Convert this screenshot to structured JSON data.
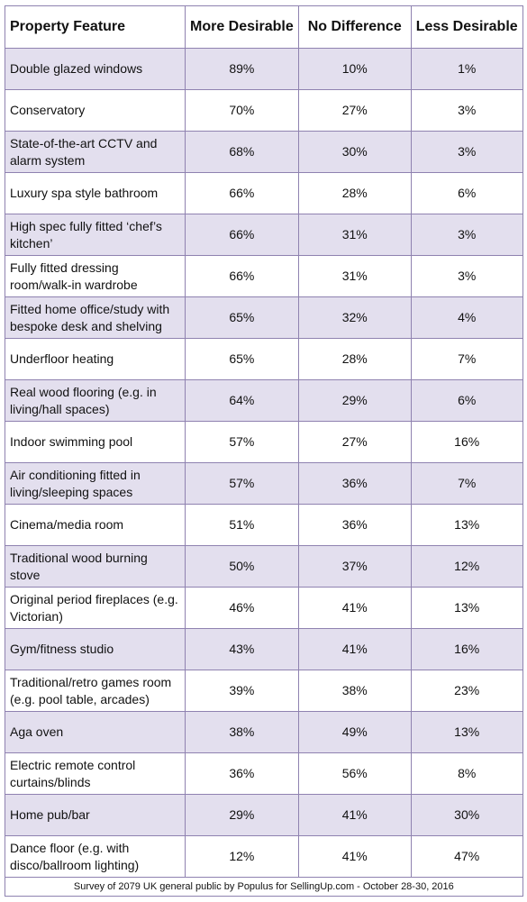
{
  "chart_data": {
    "type": "table",
    "columns": [
      "Property Feature",
      "More Desirable",
      "No Difference",
      "Less Desirable"
    ],
    "rows": [
      [
        "Double glazed windows",
        "89%",
        "10%",
        "1%"
      ],
      [
        "Conservatory",
        "70%",
        "27%",
        "3%"
      ],
      [
        "State-of-the-art CCTV and alarm system",
        "68%",
        "30%",
        "3%"
      ],
      [
        "Luxury spa style bathroom",
        "66%",
        "28%",
        "6%"
      ],
      [
        "High spec fully fitted ‘chef’s kitchen’",
        "66%",
        "31%",
        "3%"
      ],
      [
        "Fully fitted dressing room/walk-in wardrobe",
        "66%",
        "31%",
        "3%"
      ],
      [
        "Fitted home office/study with bespoke desk and shelving",
        "65%",
        "32%",
        "4%"
      ],
      [
        "Underfloor heating",
        "65%",
        "28%",
        "7%"
      ],
      [
        "Real wood flooring (e.g. in living/hall spaces)",
        "64%",
        "29%",
        "6%"
      ],
      [
        "Indoor swimming pool",
        "57%",
        "27%",
        "16%"
      ],
      [
        "Air conditioning fitted in living/sleeping spaces",
        "57%",
        "36%",
        "7%"
      ],
      [
        "Cinema/media room",
        "51%",
        "36%",
        "13%"
      ],
      [
        "Traditional wood burning stove",
        "50%",
        "37%",
        "12%"
      ],
      [
        "Original period fireplaces (e.g. Victorian)",
        "46%",
        "41%",
        "13%"
      ],
      [
        "Gym/fitness studio",
        "43%",
        "41%",
        "16%"
      ],
      [
        "Traditional/retro games room (e.g. pool table, arcades)",
        "39%",
        "38%",
        "23%"
      ],
      [
        "Aga oven",
        "38%",
        "49%",
        "13%"
      ],
      [
        "Electric remote control curtains/blinds",
        "36%",
        "56%",
        "8%"
      ],
      [
        "Home pub/bar",
        "29%",
        "41%",
        "30%"
      ],
      [
        "Dance floor (e.g. with disco/ballroom lighting)",
        "12%",
        "41%",
        "47%"
      ]
    ],
    "footnote": "Survey of 2079 UK general public by Populus for SellingUp.com - October 28-30, 2016"
  },
  "colors": {
    "row_shade": "#e3dfee",
    "border": "#8f82b0"
  }
}
